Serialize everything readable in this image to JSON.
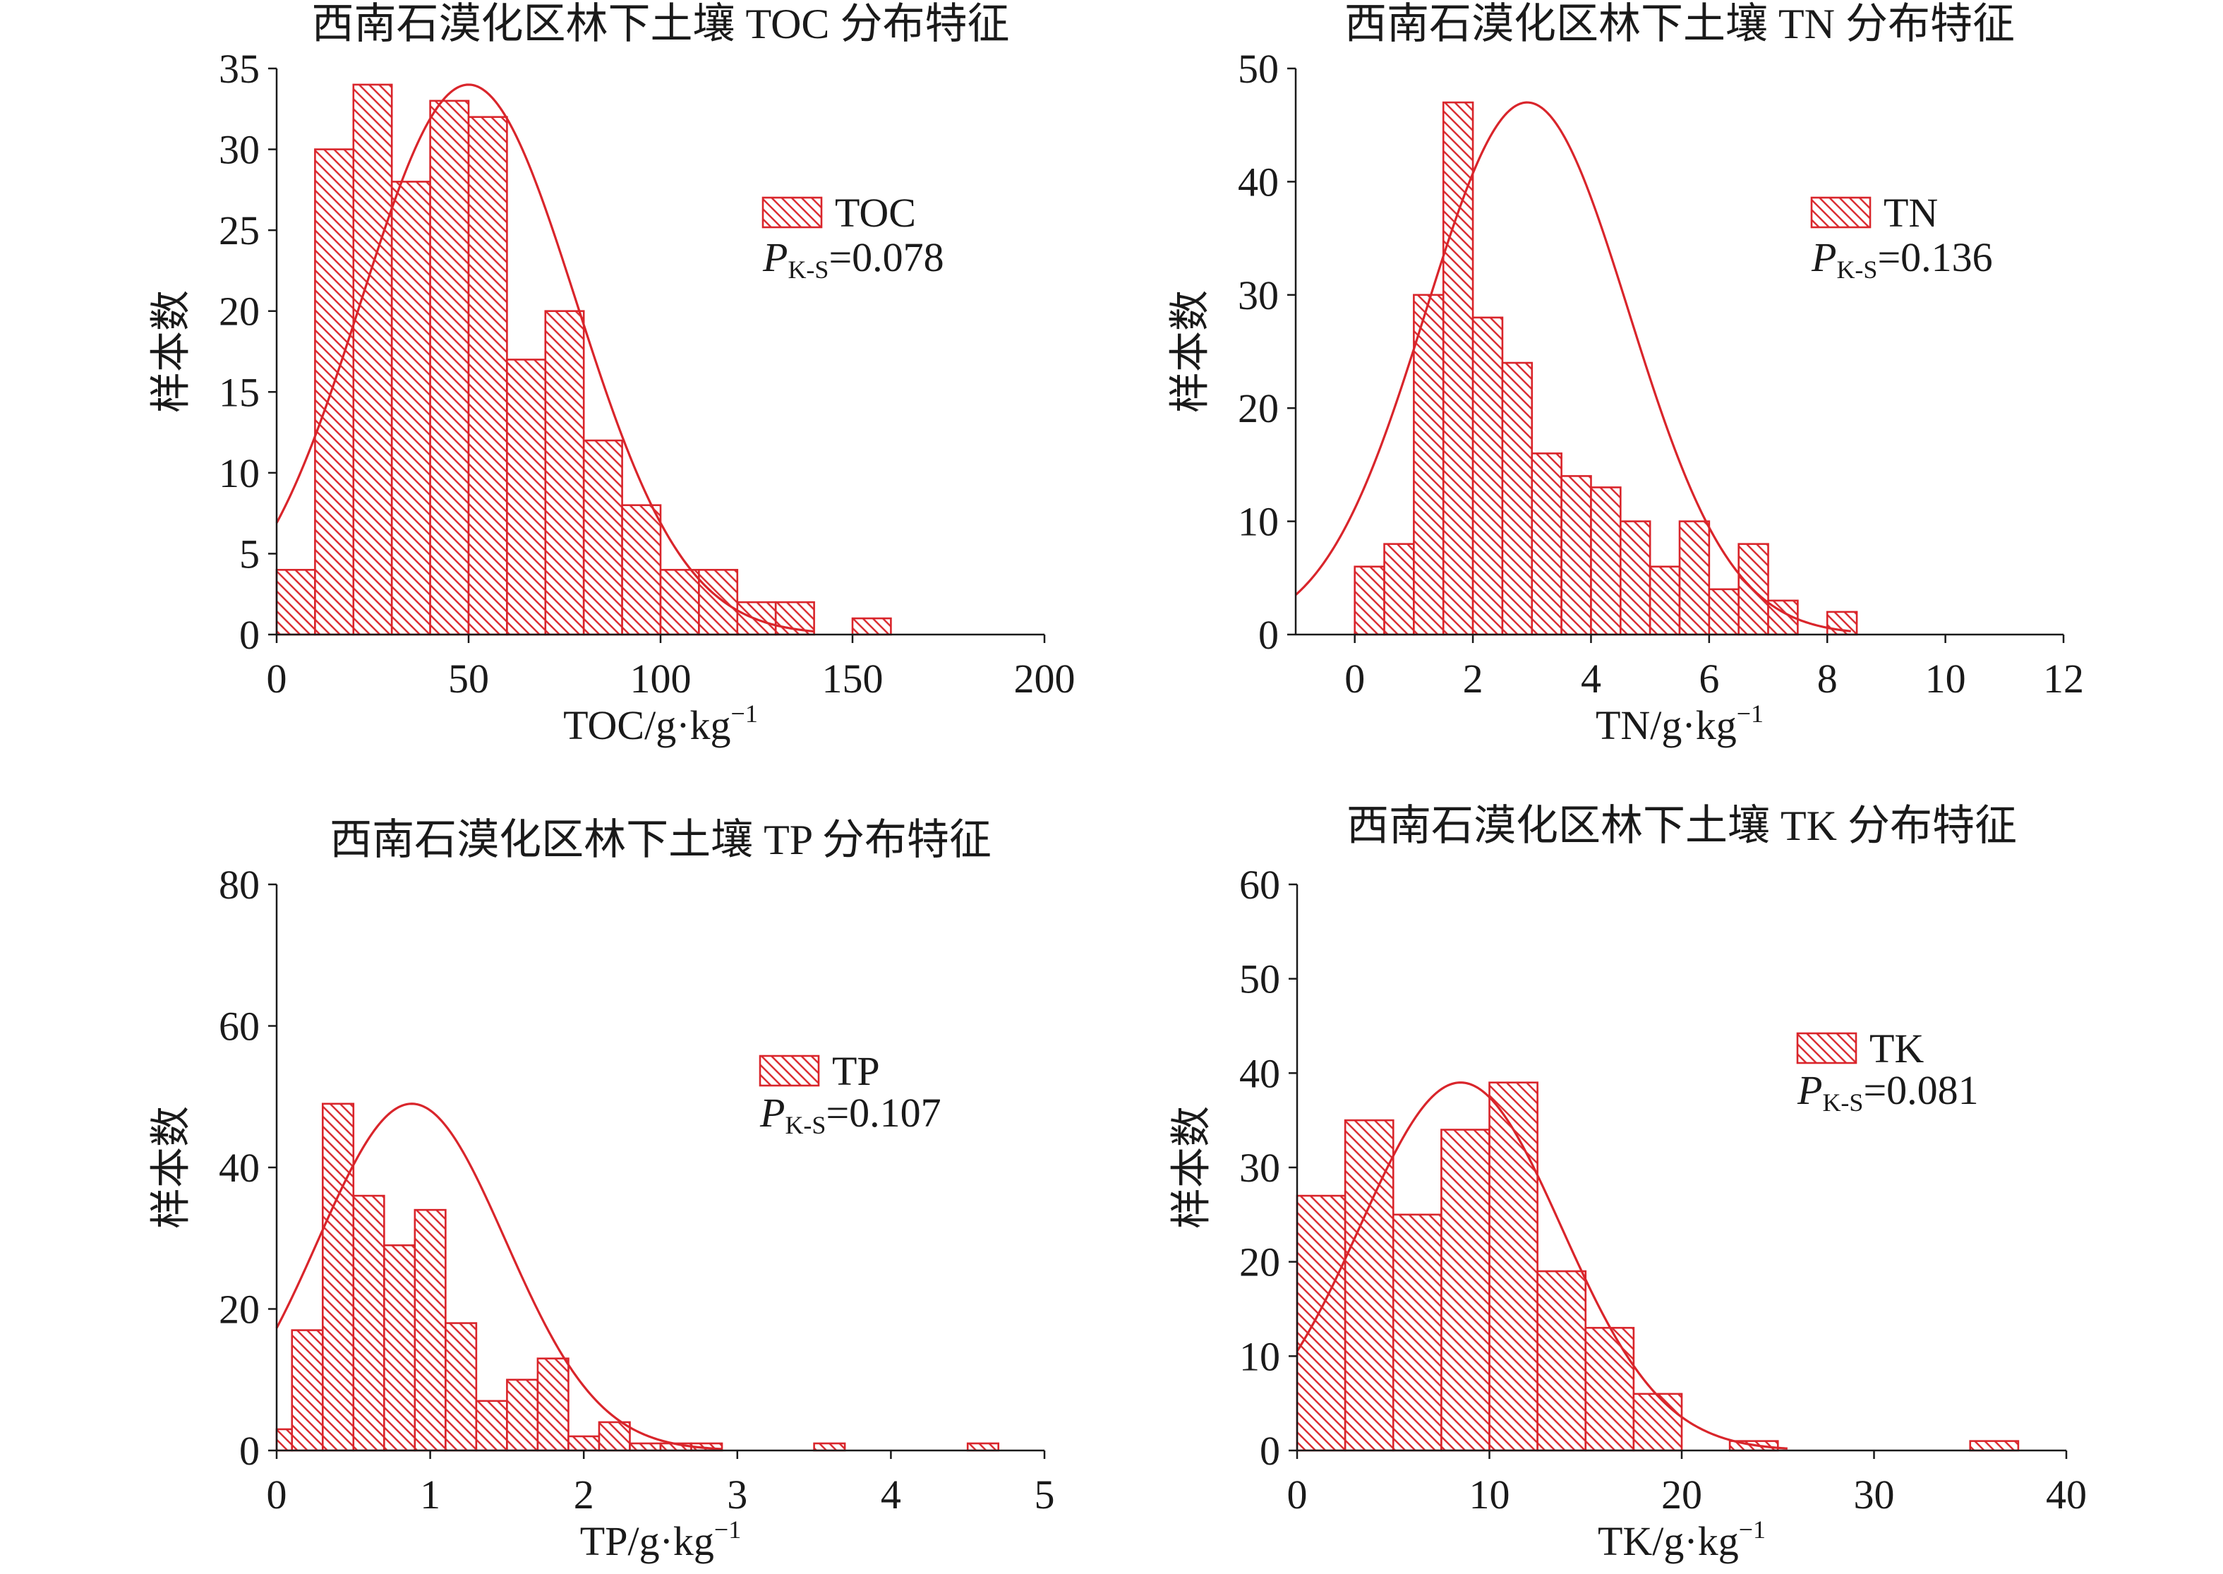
{
  "figure": {
    "background": "#ffffff",
    "accent_color": "#d9252b",
    "axis_color": "#1a1a1a"
  },
  "chart_data": [
    {
      "type": "bar",
      "title": "西南石漠化区林下土壤 TOC 分布特征",
      "xlabel": "TOC/g·kg",
      "xlabel_sup": "−1",
      "ylabel": "样本数",
      "xlim": [
        0,
        200
      ],
      "ylim": [
        0,
        35
      ],
      "xticks": [
        0,
        50,
        100,
        150,
        200
      ],
      "yticks": [
        0,
        5,
        10,
        15,
        20,
        25,
        30,
        35
      ],
      "bins": [
        {
          "x0": 0,
          "x1": 10,
          "count": 4
        },
        {
          "x0": 10,
          "x1": 20,
          "count": 30
        },
        {
          "x0": 20,
          "x1": 30,
          "count": 34
        },
        {
          "x0": 30,
          "x1": 40,
          "count": 28
        },
        {
          "x0": 40,
          "x1": 50,
          "count": 33
        },
        {
          "x0": 50,
          "x1": 60,
          "count": 32
        },
        {
          "x0": 60,
          "x1": 70,
          "count": 17
        },
        {
          "x0": 70,
          "x1": 80,
          "count": 20
        },
        {
          "x0": 80,
          "x1": 90,
          "count": 12
        },
        {
          "x0": 90,
          "x1": 100,
          "count": 8
        },
        {
          "x0": 100,
          "x1": 110,
          "count": 4
        },
        {
          "x0": 110,
          "x1": 120,
          "count": 4
        },
        {
          "x0": 120,
          "x1": 130,
          "count": 2
        },
        {
          "x0": 130,
          "x1": 140,
          "count": 2
        },
        {
          "x0": 150,
          "x1": 160,
          "count": 1
        }
      ],
      "normal_fit": {
        "mean": 50,
        "sd": 28,
        "peak": 34,
        "x_range": [
          0,
          140
        ]
      },
      "legend": {
        "label": "TOC",
        "stat_symbol": "P",
        "stat_subscript": "K-S",
        "stat_value": "=0.078"
      }
    },
    {
      "type": "bar",
      "title": "西南石漠化区林下土壤 TN 分布特征",
      "xlabel": "TN/g·kg",
      "xlabel_sup": "−1",
      "ylabel": "样本数",
      "xlim": [
        -1,
        12
      ],
      "ylim": [
        0,
        50
      ],
      "xticks": [
        0,
        2,
        4,
        6,
        8,
        10,
        12
      ],
      "yticks": [
        0,
        10,
        20,
        30,
        40,
        50
      ],
      "bins": [
        {
          "x0": 0,
          "x1": 0.5,
          "count": 6
        },
        {
          "x0": 0.5,
          "x1": 1,
          "count": 8
        },
        {
          "x0": 1,
          "x1": 1.5,
          "count": 30
        },
        {
          "x0": 1.5,
          "x1": 2,
          "count": 47
        },
        {
          "x0": 2,
          "x1": 2.5,
          "count": 28
        },
        {
          "x0": 2.5,
          "x1": 3,
          "count": 24
        },
        {
          "x0": 3,
          "x1": 3.5,
          "count": 16
        },
        {
          "x0": 3.5,
          "x1": 4,
          "count": 14
        },
        {
          "x0": 4,
          "x1": 4.5,
          "count": 13
        },
        {
          "x0": 4.5,
          "x1": 5,
          "count": 10
        },
        {
          "x0": 5,
          "x1": 5.5,
          "count": 6
        },
        {
          "x0": 5.5,
          "x1": 6,
          "count": 10
        },
        {
          "x0": 6,
          "x1": 6.5,
          "count": 4
        },
        {
          "x0": 6.5,
          "x1": 7,
          "count": 8
        },
        {
          "x0": 7,
          "x1": 7.5,
          "count": 3
        },
        {
          "x0": 8,
          "x1": 8.5,
          "count": 2
        }
      ],
      "normal_fit": {
        "mean": 2.92,
        "sd": 1.72,
        "peak": 47,
        "x_range": [
          -1,
          8.4
        ]
      },
      "legend": {
        "label": "TN",
        "stat_symbol": "P",
        "stat_subscript": "K-S",
        "stat_value": "=0.136"
      }
    },
    {
      "type": "bar",
      "title": "西南石漠化区林下土壤 TP 分布特征",
      "xlabel": "TP/g·kg",
      "xlabel_sup": "−1",
      "ylabel": "样本数",
      "xlim": [
        0,
        5
      ],
      "ylim": [
        0,
        80
      ],
      "xticks": [
        0,
        1,
        2,
        3,
        4,
        5
      ],
      "yticks": [
        0,
        20,
        40,
        60,
        80
      ],
      "bins": [
        {
          "x0": 0,
          "x1": 0.1,
          "count": 3
        },
        {
          "x0": 0.1,
          "x1": 0.3,
          "count": 17
        },
        {
          "x0": 0.3,
          "x1": 0.5,
          "count": 49
        },
        {
          "x0": 0.5,
          "x1": 0.7,
          "count": 36
        },
        {
          "x0": 0.7,
          "x1": 0.9,
          "count": 29
        },
        {
          "x0": 0.9,
          "x1": 1.1,
          "count": 34
        },
        {
          "x0": 1.1,
          "x1": 1.3,
          "count": 18
        },
        {
          "x0": 1.3,
          "x1": 1.5,
          "count": 7
        },
        {
          "x0": 1.5,
          "x1": 1.7,
          "count": 10
        },
        {
          "x0": 1.7,
          "x1": 1.9,
          "count": 13
        },
        {
          "x0": 1.9,
          "x1": 2.1,
          "count": 2
        },
        {
          "x0": 2.1,
          "x1": 2.3,
          "count": 4
        },
        {
          "x0": 2.3,
          "x1": 2.5,
          "count": 1
        },
        {
          "x0": 2.5,
          "x1": 2.7,
          "count": 1
        },
        {
          "x0": 2.7,
          "x1": 2.9,
          "count": 1
        },
        {
          "x0": 3.5,
          "x1": 3.7,
          "count": 1
        },
        {
          "x0": 4.5,
          "x1": 4.7,
          "count": 1
        }
      ],
      "normal_fit": {
        "mean": 0.88,
        "sd": 0.61,
        "peak": 49,
        "x_range": [
          0,
          2.9
        ]
      },
      "legend": {
        "label": "TP",
        "stat_symbol": "P",
        "stat_subscript": "K-S",
        "stat_value": "=0.107"
      }
    },
    {
      "type": "bar",
      "title": "西南石漠化区林下土壤 TK 分布特征",
      "xlabel": "TK/g·kg",
      "xlabel_sup": "−1",
      "ylabel": "样本数",
      "xlim": [
        0,
        40
      ],
      "ylim": [
        0,
        60
      ],
      "xticks": [
        0,
        10,
        20,
        30,
        40
      ],
      "yticks": [
        0,
        10,
        20,
        30,
        40,
        50,
        60
      ],
      "bins": [
        {
          "x0": 0,
          "x1": 2.5,
          "count": 27
        },
        {
          "x0": 2.5,
          "x1": 5,
          "count": 35
        },
        {
          "x0": 5,
          "x1": 7.5,
          "count": 25
        },
        {
          "x0": 7.5,
          "x1": 10,
          "count": 34
        },
        {
          "x0": 10,
          "x1": 12.5,
          "count": 39
        },
        {
          "x0": 12.5,
          "x1": 15,
          "count": 19
        },
        {
          "x0": 15,
          "x1": 17.5,
          "count": 13
        },
        {
          "x0": 17.5,
          "x1": 20,
          "count": 6
        },
        {
          "x0": 22.5,
          "x1": 25,
          "count": 1
        },
        {
          "x0": 35,
          "x1": 37.5,
          "count": 1
        }
      ],
      "normal_fit": {
        "mean": 8.5,
        "sd": 5.25,
        "peak": 39,
        "x_range": [
          0,
          25.5
        ]
      },
      "legend": {
        "label": "TK",
        "stat_symbol": "P",
        "stat_subscript": "K-S",
        "stat_value": "=0.081"
      }
    }
  ]
}
